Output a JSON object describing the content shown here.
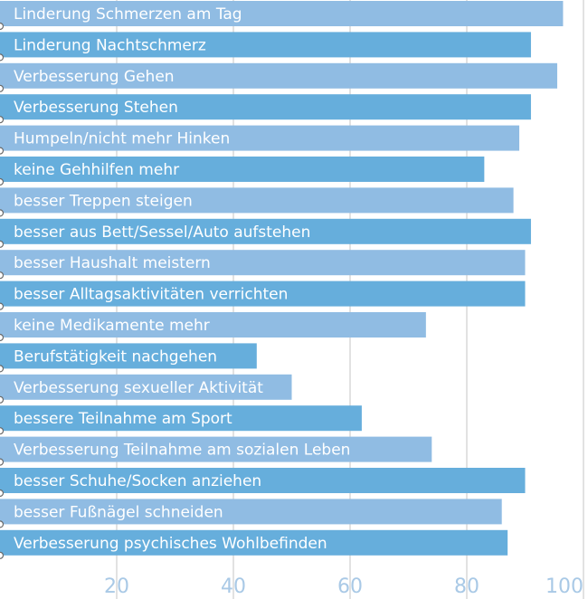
{
  "chart_data": {
    "type": "bar",
    "orientation": "horizontal",
    "title": "",
    "xlabel": "",
    "ylabel": "",
    "xlim": [
      0,
      100
    ],
    "xticks": [
      20,
      40,
      60,
      80,
      100
    ],
    "grid": true,
    "categories": [
      "Linderung Schmerzen am Tag",
      "Linderung Nachtschmerz",
      "Verbesserung Gehen",
      "Verbesserung Stehen",
      "Humpeln/nicht mehr Hinken",
      "keine Gehhilfen mehr",
      "besser Treppen steigen",
      "besser aus Bett/Sessel/Auto aufstehen",
      "besser Haushalt meistern",
      "besser Alltagsaktivitäten verrichten",
      "keine Medikamente mehr",
      "Berufstätigkeit nachgehen",
      "Verbesserung sexueller Aktivität",
      "bessere Teilnahme am Sport",
      "Verbesserung Teilnahme am sozialen Leben",
      "besser Schuhe/Socken anziehen",
      "besser Fußnägel schneiden",
      "Verbesserung psychisches Wohlbefinden"
    ],
    "values": [
      96.5,
      91,
      95.5,
      91,
      89,
      83,
      88,
      91,
      90,
      90,
      73,
      44,
      50,
      62,
      74,
      90,
      86,
      87
    ],
    "colors": {
      "light": "#90bce3",
      "dark": "#66aedc",
      "grid": "#d9d9d9",
      "tick": "#a9c9e6",
      "label": "#ffffff"
    }
  }
}
